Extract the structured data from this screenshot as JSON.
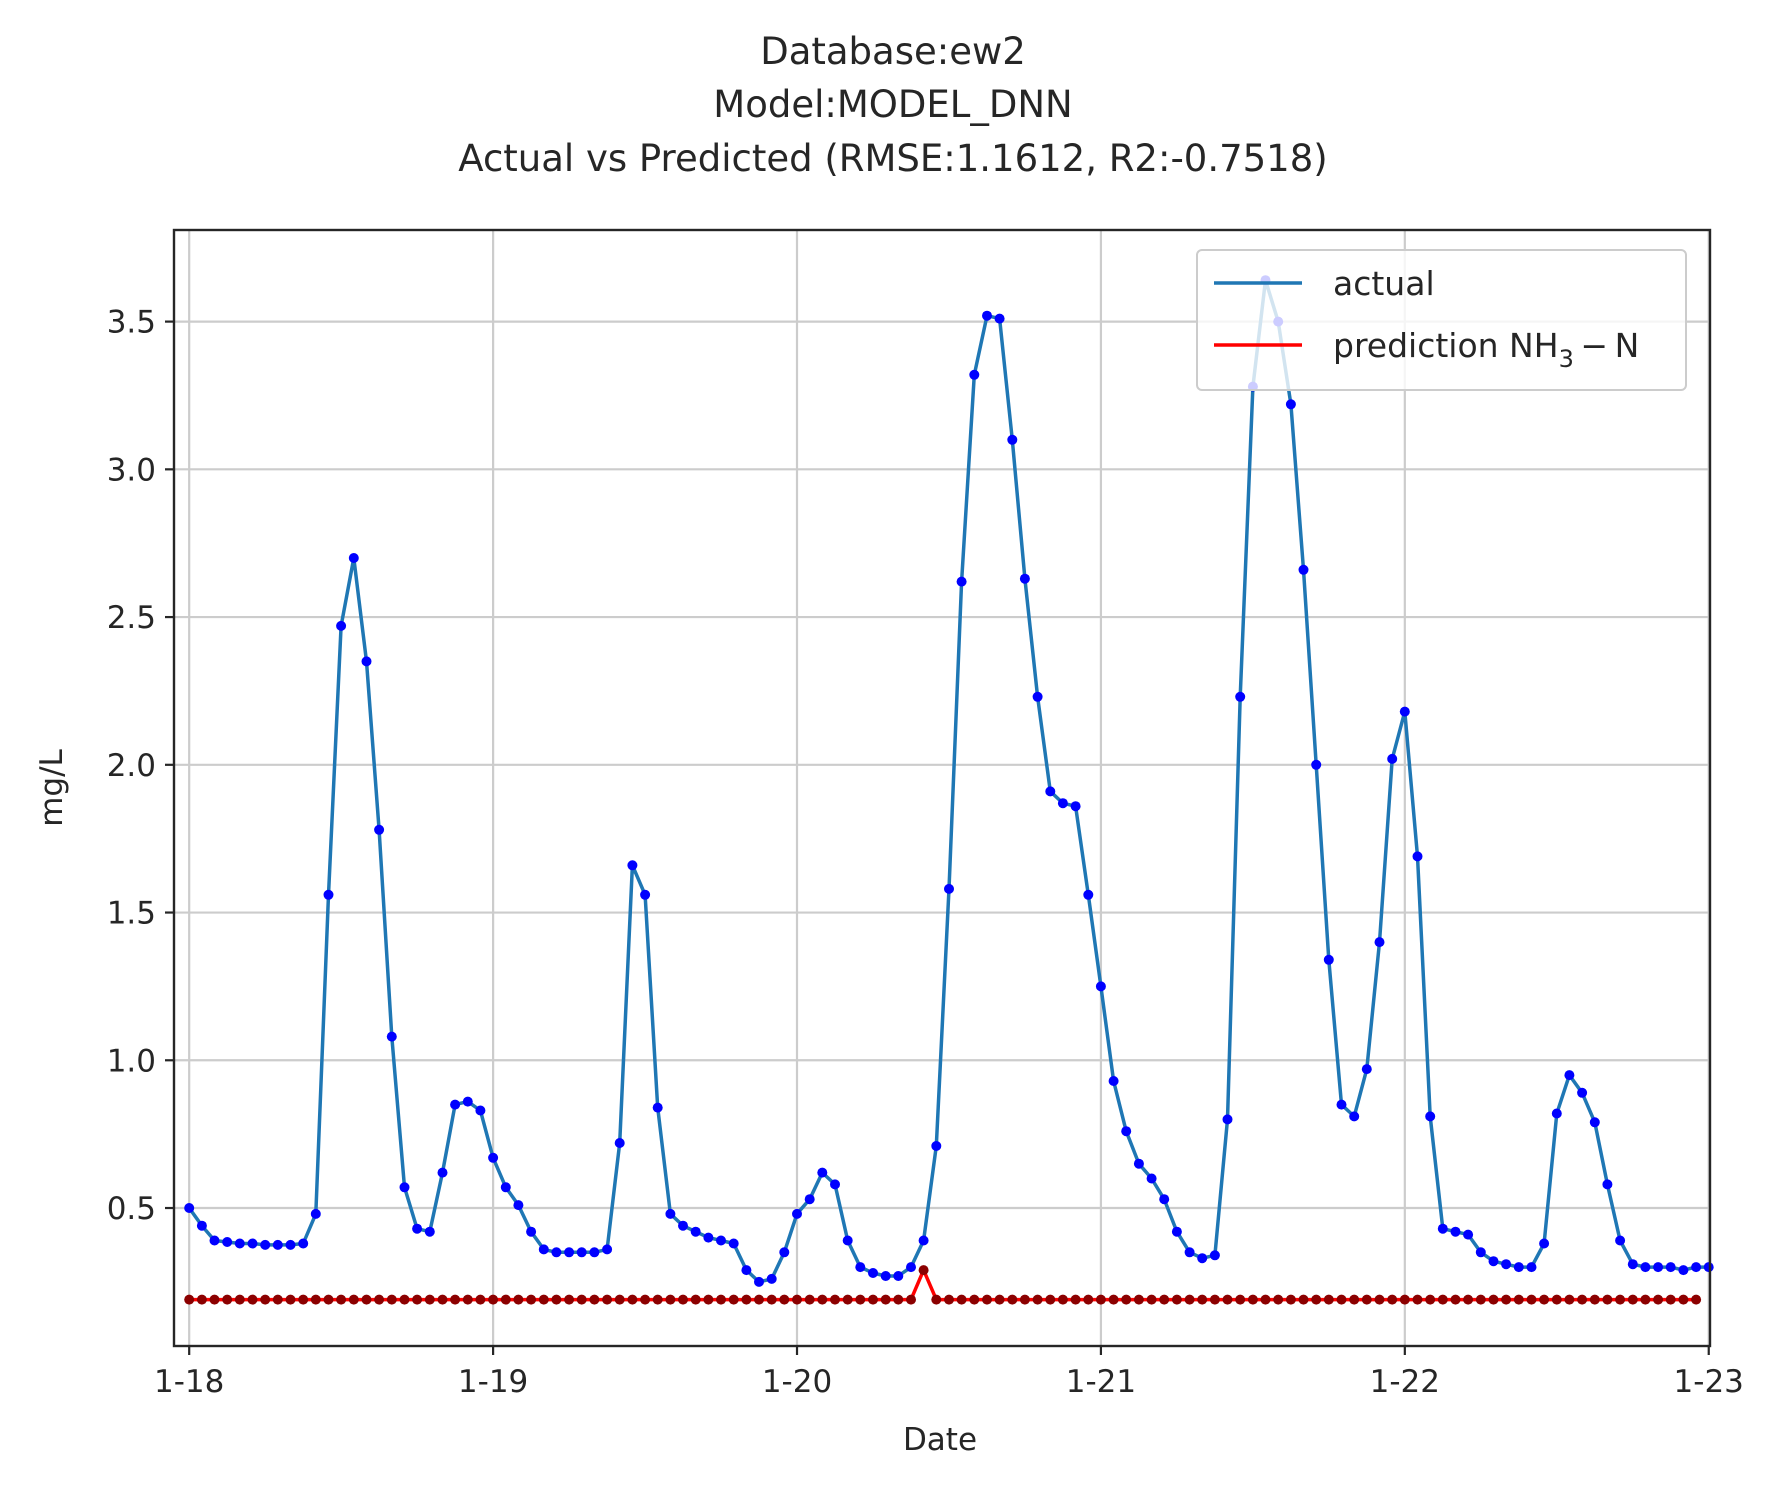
{
  "chart_data": {
    "type": "line",
    "title_lines": [
      "Database:ew2",
      "Model:MODEL_DNN",
      "Actual vs Predicted (RMSE:1.1612, R2:-0.7518)"
    ],
    "xlabel": "Date",
    "ylabel": "mg/L",
    "x_tick_labels": [
      "1-18",
      "1-19",
      "1-20",
      "1-21",
      "1-22",
      "1-23"
    ],
    "x_ticks": [
      0,
      24,
      48,
      72,
      96,
      120
    ],
    "xlim": [
      -1.2,
      120.1
    ],
    "y_ticks": [
      0.5,
      1.0,
      1.5,
      2.0,
      2.5,
      3.0,
      3.5
    ],
    "y_tick_labels": [
      "0.5",
      "1.0",
      "1.5",
      "2.0",
      "2.5",
      "3.0",
      "3.5"
    ],
    "ylim": [
      0.033,
      3.81
    ],
    "grid": true,
    "legend_position": "top-right",
    "x_step_hours": 1,
    "series": [
      {
        "name": "actual",
        "color": "#1f77b4",
        "marker_color": "#0000ff",
        "values": [
          0.5,
          0.44,
          0.39,
          0.385,
          0.38,
          0.38,
          0.375,
          0.375,
          0.375,
          0.38,
          0.48,
          1.56,
          2.47,
          2.7,
          2.35,
          1.78,
          1.08,
          0.57,
          0.43,
          0.42,
          0.62,
          0.85,
          0.86,
          0.83,
          0.67,
          0.57,
          0.51,
          0.42,
          0.36,
          0.35,
          0.35,
          0.35,
          0.35,
          0.36,
          0.72,
          1.66,
          1.56,
          0.84,
          0.48,
          0.44,
          0.42,
          0.4,
          0.39,
          0.38,
          0.29,
          0.25,
          0.26,
          0.35,
          0.48,
          0.53,
          0.62,
          0.58,
          0.39,
          0.3,
          0.28,
          0.27,
          0.27,
          0.3,
          0.39,
          0.71,
          1.58,
          2.62,
          3.32,
          3.52,
          3.51,
          3.1,
          2.63,
          2.23,
          1.91,
          1.87,
          1.86,
          1.56,
          1.25,
          0.93,
          0.76,
          0.65,
          0.6,
          0.53,
          0.42,
          0.35,
          0.33,
          0.34,
          0.8,
          2.23,
          3.28,
          3.64,
          3.5,
          3.22,
          2.66,
          2.0,
          1.34,
          0.85,
          0.81,
          0.97,
          1.4,
          2.02,
          2.18,
          1.69,
          0.81,
          0.43,
          0.42,
          0.41,
          0.35,
          0.32,
          0.31,
          0.3,
          0.3,
          0.38,
          0.82,
          0.95,
          0.89,
          0.79,
          0.58,
          0.39,
          0.31,
          0.3,
          0.3,
          0.3,
          0.29,
          0.3,
          0.3
        ]
      },
      {
        "name": "prediction NH3 - N",
        "name_parts": {
          "main": "prediction NH",
          "sub": "3",
          "tail": " − N"
        },
        "color": "#ff0000",
        "marker_color": "#8b0000",
        "values": [
          0.19,
          0.19,
          0.19,
          0.19,
          0.19,
          0.19,
          0.19,
          0.19,
          0.19,
          0.19,
          0.19,
          0.19,
          0.19,
          0.19,
          0.19,
          0.19,
          0.19,
          0.19,
          0.19,
          0.19,
          0.19,
          0.19,
          0.19,
          0.19,
          0.19,
          0.19,
          0.19,
          0.19,
          0.19,
          0.19,
          0.19,
          0.19,
          0.19,
          0.19,
          0.19,
          0.19,
          0.19,
          0.19,
          0.19,
          0.19,
          0.19,
          0.19,
          0.19,
          0.19,
          0.19,
          0.19,
          0.19,
          0.19,
          0.19,
          0.19,
          0.19,
          0.19,
          0.19,
          0.19,
          0.19,
          0.19,
          0.19,
          0.19,
          0.29,
          0.19,
          0.19,
          0.19,
          0.19,
          0.19,
          0.19,
          0.19,
          0.19,
          0.19,
          0.19,
          0.19,
          0.19,
          0.19,
          0.19,
          0.19,
          0.19,
          0.19,
          0.19,
          0.19,
          0.19,
          0.19,
          0.19,
          0.19,
          0.19,
          0.19,
          0.19,
          0.19,
          0.19,
          0.19,
          0.19,
          0.19,
          0.19,
          0.19,
          0.19,
          0.19,
          0.19,
          0.19,
          0.19,
          0.19,
          0.19,
          0.19,
          0.19,
          0.19,
          0.19,
          0.19,
          0.19,
          0.19,
          0.19,
          0.19,
          0.19,
          0.19,
          0.19,
          0.19,
          0.19,
          0.19,
          0.19,
          0.19,
          0.19,
          0.19,
          0.19,
          0.19
        ]
      }
    ]
  }
}
